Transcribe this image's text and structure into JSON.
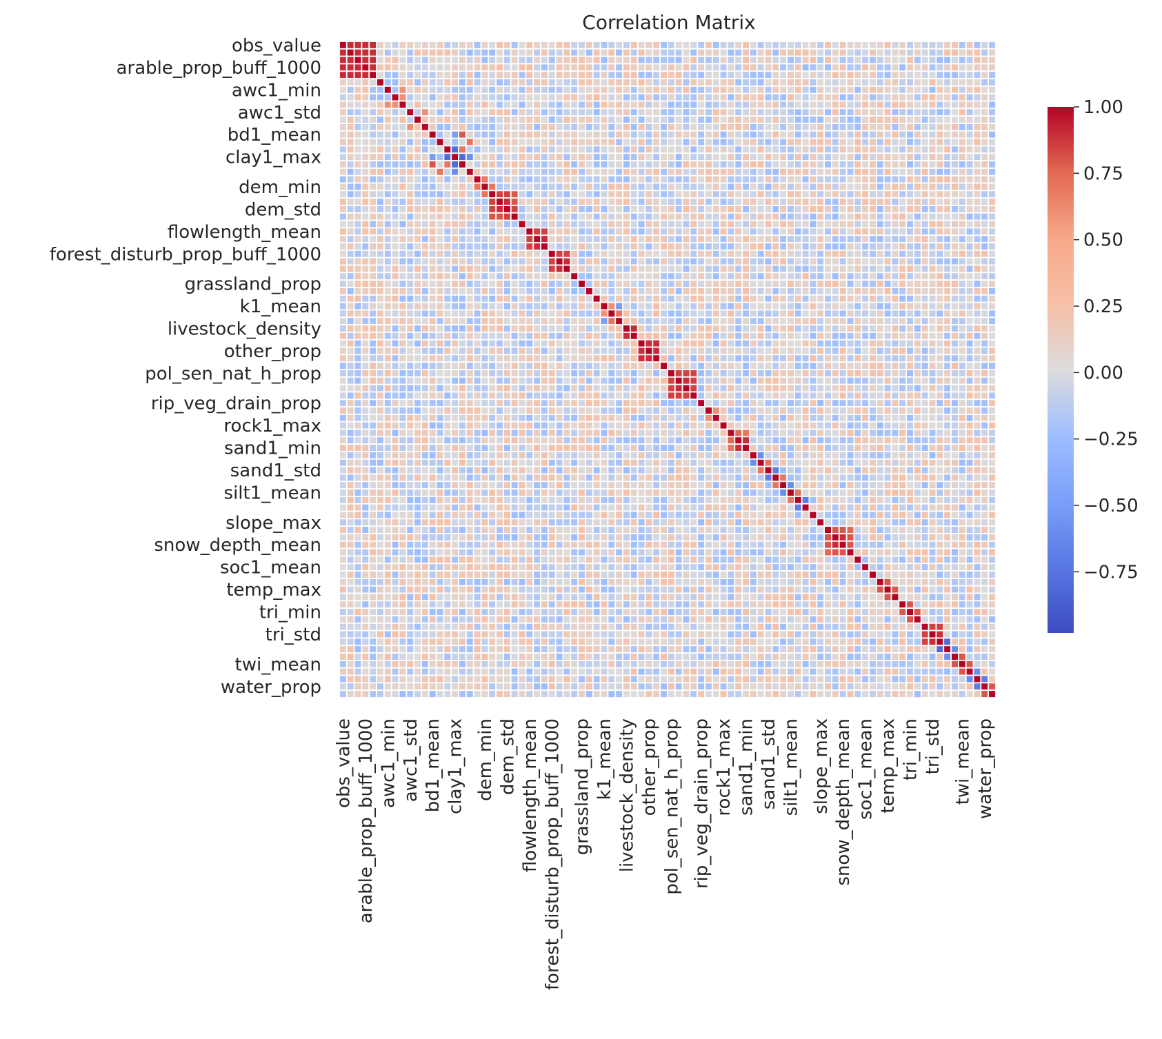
{
  "chart_data": {
    "type": "heatmap",
    "title": "Correlation Matrix",
    "colormap": "coolwarm",
    "vmin": -0.98,
    "vmax": 1.0,
    "colorbar_ticks": [
      "1.00",
      "0.75",
      "0.50",
      "0.25",
      "0.00",
      "−0.25",
      "−0.50",
      "−0.75"
    ],
    "colorbar_tick_values": [
      1.0,
      0.75,
      0.5,
      0.25,
      0.0,
      -0.25,
      -0.5,
      -0.75
    ],
    "n_variables": 88,
    "tick_labels": [
      "obs_value",
      "arable_prop_buff_1000",
      "awc1_min",
      "awc1_std",
      "bd1_mean",
      "clay1_max",
      "dem_min",
      "dem_std",
      "flowlength_mean",
      "forest_disturb_prop_buff_1000",
      "grassland_prop",
      "k1_mean",
      "livestock_density",
      "other_prop",
      "pol_sen_nat_h_prop",
      "rip_veg_drain_prop",
      "rock1_max",
      "sand1_min",
      "sand1_std",
      "silt1_mean",
      "slope_max",
      "snow_depth_mean",
      "soc1_mean",
      "temp_max",
      "tri_min",
      "tri_std",
      "twi_mean",
      "water_prop"
    ],
    "tick_positions": [
      0,
      3,
      6,
      9,
      12,
      15,
      19,
      22,
      25,
      28,
      32,
      35,
      38,
      41,
      44,
      48,
      51,
      54,
      57,
      60,
      64,
      67,
      70,
      73,
      76,
      79,
      83,
      86
    ],
    "strong_correlations": [
      [
        0,
        1,
        0.9
      ],
      [
        0,
        2,
        0.9
      ],
      [
        0,
        3,
        0.9
      ],
      [
        0,
        4,
        0.9
      ],
      [
        1,
        2,
        0.9
      ],
      [
        1,
        3,
        0.9
      ],
      [
        1,
        4,
        0.9
      ],
      [
        2,
        3,
        0.9
      ],
      [
        2,
        4,
        0.9
      ],
      [
        3,
        4,
        0.9
      ],
      [
        6,
        8,
        0.6
      ],
      [
        7,
        8,
        0.6
      ],
      [
        9,
        11,
        0.6
      ],
      [
        12,
        16,
        0.8
      ],
      [
        14,
        16,
        0.7
      ],
      [
        12,
        15,
        -0.5
      ],
      [
        13,
        17,
        0.7
      ],
      [
        15,
        16,
        -0.8
      ],
      [
        15,
        17,
        -0.6
      ],
      [
        14,
        15,
        -0.8
      ],
      [
        18,
        19,
        0.7
      ],
      [
        19,
        20,
        0.7
      ],
      [
        20,
        21,
        0.85
      ],
      [
        20,
        22,
        0.85
      ],
      [
        21,
        22,
        0.9
      ],
      [
        20,
        23,
        0.8
      ],
      [
        21,
        23,
        0.8
      ],
      [
        22,
        23,
        0.85
      ],
      [
        25,
        26,
        0.85
      ],
      [
        25,
        27,
        0.85
      ],
      [
        26,
        27,
        0.9
      ],
      [
        28,
        29,
        0.85
      ],
      [
        28,
        30,
        0.85
      ],
      [
        29,
        30,
        0.9
      ],
      [
        35,
        36,
        0.6
      ],
      [
        35,
        37,
        -0.5
      ],
      [
        36,
        37,
        0.7
      ],
      [
        38,
        39,
        0.9
      ],
      [
        40,
        41,
        0.9
      ],
      [
        40,
        42,
        0.9
      ],
      [
        41,
        42,
        0.9
      ],
      [
        44,
        45,
        0.85
      ],
      [
        44,
        46,
        0.85
      ],
      [
        45,
        46,
        0.9
      ],
      [
        44,
        47,
        0.85
      ],
      [
        45,
        47,
        0.85
      ],
      [
        46,
        47,
        0.85
      ],
      [
        49,
        50,
        0.6
      ],
      [
        52,
        53,
        0.75
      ],
      [
        52,
        54,
        0.7
      ],
      [
        53,
        54,
        0.9
      ],
      [
        55,
        56,
        -0.6
      ],
      [
        56,
        57,
        0.7
      ],
      [
        57,
        58,
        -0.7
      ],
      [
        58,
        59,
        0.7
      ],
      [
        59,
        60,
        -0.6
      ],
      [
        60,
        61,
        0.7
      ],
      [
        61,
        62,
        -0.7
      ],
      [
        65,
        66,
        0.8
      ],
      [
        65,
        67,
        0.8
      ],
      [
        66,
        67,
        0.9
      ],
      [
        65,
        68,
        0.75
      ],
      [
        66,
        68,
        0.8
      ],
      [
        67,
        68,
        0.8
      ],
      [
        72,
        73,
        0.8
      ],
      [
        73,
        74,
        0.8
      ],
      [
        75,
        76,
        0.8
      ],
      [
        76,
        77,
        0.8
      ],
      [
        78,
        79,
        0.85
      ],
      [
        78,
        80,
        0.85
      ],
      [
        79,
        80,
        0.9
      ],
      [
        80,
        81,
        -0.8
      ],
      [
        81,
        82,
        -0.6
      ],
      [
        82,
        83,
        0.8
      ],
      [
        83,
        84,
        0.8
      ],
      [
        84,
        85,
        -0.6
      ],
      [
        85,
        86,
        -0.7
      ],
      [
        86,
        87,
        0.8
      ]
    ]
  }
}
